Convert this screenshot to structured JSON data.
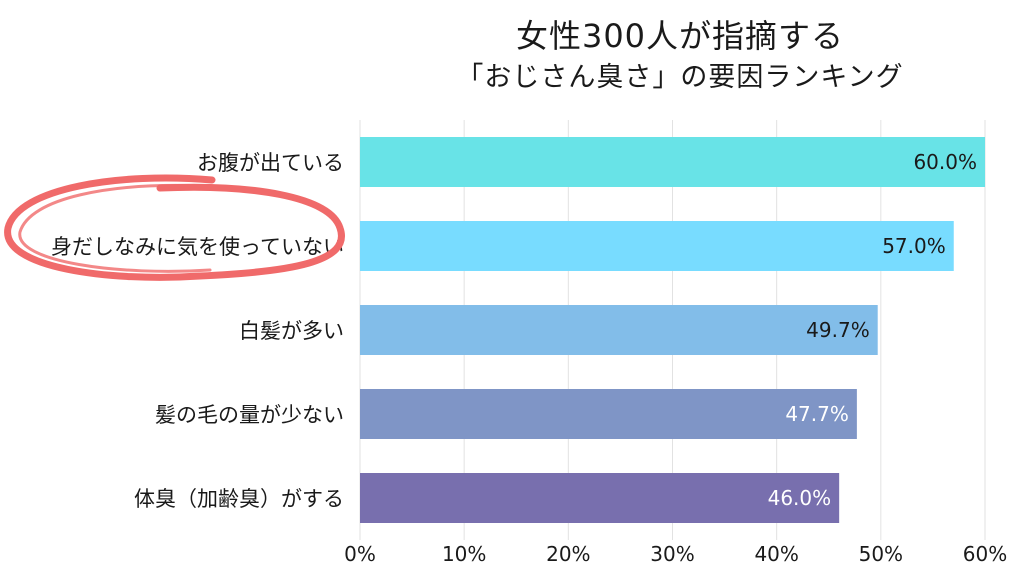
{
  "chart_data": {
    "type": "bar",
    "orientation": "horizontal",
    "title": "女性300人が指摘する",
    "subtitle": "「おじさん臭さ」の要因ランキング",
    "categories": [
      "お腹が出ている",
      "身だしなみに気を使っていない",
      "白髪が多い",
      "髪の毛の量が少ない",
      "体臭（加齢臭）がする"
    ],
    "values": [
      60.0,
      57.0,
      49.7,
      47.7,
      46.0
    ],
    "value_labels": [
      "60.0%",
      "57.0%",
      "49.7%",
      "47.7%",
      "46.0%"
    ],
    "bar_colors": [
      "#68e3e7",
      "#78dcff",
      "#82bde9",
      "#7f95c6",
      "#786fae"
    ],
    "value_label_colors": [
      "#1a1a1a",
      "#1a1a1a",
      "#1a1a1a",
      "#ffffff",
      "#ffffff"
    ],
    "xlim": [
      0,
      60
    ],
    "xticks": [
      "0%",
      "10%",
      "20%",
      "30%",
      "40%",
      "50%",
      "60%"
    ],
    "xtick_values": [
      0,
      10,
      20,
      30,
      40,
      50,
      60
    ],
    "grid": true,
    "highlight_category": "身だしなみに気を使っていない",
    "highlight_color": "#f06a6a"
  }
}
